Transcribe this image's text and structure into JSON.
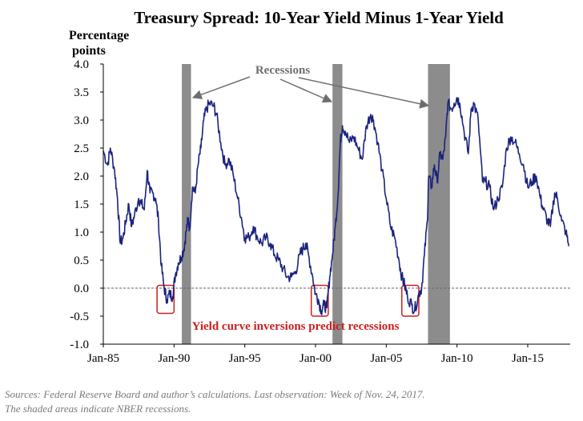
{
  "chart_data": {
    "type": "line",
    "title": "Treasury Spread: 10-Year Yield Minus 1-Year Yield",
    "ylabel_line1": "Percentage",
    "ylabel_line2": "points",
    "xlabel": "",
    "ylim": [
      -1.0,
      4.0
    ],
    "xlim": [
      1985.0,
      2018.0
    ],
    "y_ticks": [
      {
        "value": 4.0,
        "label": "4.0"
      },
      {
        "value": 3.5,
        "label": "3.5"
      },
      {
        "value": 3.0,
        "label": "3.0"
      },
      {
        "value": 2.5,
        "label": "2.5"
      },
      {
        "value": 2.0,
        "label": "2.0"
      },
      {
        "value": 1.5,
        "label": "1.5"
      },
      {
        "value": 1.0,
        "label": "1.0"
      },
      {
        "value": 0.5,
        "label": "0.5"
      },
      {
        "value": 0.0,
        "label": "0.0"
      },
      {
        "value": -0.5,
        "label": "-0.5"
      },
      {
        "value": -1.0,
        "label": "-1.0"
      }
    ],
    "x_ticks": [
      {
        "value": 1985.0,
        "label": "Jan-85"
      },
      {
        "value": 1990.0,
        "label": "Jan-90"
      },
      {
        "value": 1995.0,
        "label": "Jan-95"
      },
      {
        "value": 2000.0,
        "label": "Jan-00"
      },
      {
        "value": 2005.0,
        "label": "Jan-05"
      },
      {
        "value": 2010.0,
        "label": "Jan-10"
      },
      {
        "value": 2015.0,
        "label": "Jan-15"
      }
    ],
    "zero_line": 0.0,
    "recessions": [
      {
        "start": 1990.55,
        "end": 1991.2
      },
      {
        "start": 2001.2,
        "end": 2001.9
      },
      {
        "start": 2007.95,
        "end": 2009.5
      }
    ],
    "recession_label": "Recessions",
    "inversion_boxes": [
      {
        "start": 1988.8,
        "end": 1990.0,
        "ymin": -0.45,
        "ymax": 0.05
      },
      {
        "start": 1999.7,
        "end": 2000.9,
        "ymin": -0.5,
        "ymax": 0.05
      },
      {
        "start": 2006.1,
        "end": 2007.3,
        "ymin": -0.5,
        "ymax": 0.05
      }
    ],
    "inversion_label": "Yield curve inversions predict recessions",
    "series": [
      {
        "name": "10-Year minus 1-Year Treasury spread",
        "color": "#1a237e",
        "points": [
          [
            1985.0,
            2.45
          ],
          [
            1985.3,
            2.2
          ],
          [
            1985.5,
            2.5
          ],
          [
            1985.8,
            2.1
          ],
          [
            1986.0,
            1.6
          ],
          [
            1986.2,
            0.8
          ],
          [
            1986.4,
            0.9
          ],
          [
            1986.6,
            1.2
          ],
          [
            1986.8,
            1.5
          ],
          [
            1987.0,
            1.1
          ],
          [
            1987.2,
            1.3
          ],
          [
            1987.5,
            1.6
          ],
          [
            1987.7,
            1.5
          ],
          [
            1987.9,
            1.4
          ],
          [
            1988.1,
            2.1
          ],
          [
            1988.3,
            1.7
          ],
          [
            1988.5,
            1.7
          ],
          [
            1988.7,
            1.6
          ],
          [
            1988.9,
            1.2
          ],
          [
            1989.1,
            0.4
          ],
          [
            1989.3,
            0.0
          ],
          [
            1989.5,
            -0.2
          ],
          [
            1989.7,
            -0.1
          ],
          [
            1989.9,
            -0.15
          ],
          [
            1990.1,
            0.25
          ],
          [
            1990.3,
            0.45
          ],
          [
            1990.5,
            0.55
          ],
          [
            1990.7,
            0.7
          ],
          [
            1990.85,
            1.0
          ],
          [
            1991.0,
            1.25
          ],
          [
            1991.1,
            1.05
          ],
          [
            1991.3,
            1.8
          ],
          [
            1991.5,
            1.7
          ],
          [
            1991.7,
            2.2
          ],
          [
            1991.9,
            2.5
          ],
          [
            1992.1,
            3.0
          ],
          [
            1992.3,
            3.2
          ],
          [
            1992.5,
            3.3
          ],
          [
            1992.8,
            3.25
          ],
          [
            1993.0,
            3.1
          ],
          [
            1993.3,
            2.6
          ],
          [
            1993.6,
            2.2
          ],
          [
            1993.9,
            2.3
          ],
          [
            1994.2,
            2.0
          ],
          [
            1994.5,
            1.6
          ],
          [
            1994.8,
            1.2
          ],
          [
            1995.0,
            0.9
          ],
          [
            1995.3,
            0.9
          ],
          [
            1995.6,
            1.1
          ],
          [
            1995.9,
            0.9
          ],
          [
            1996.2,
            0.8
          ],
          [
            1996.5,
            0.9
          ],
          [
            1996.8,
            0.8
          ],
          [
            1997.1,
            0.6
          ],
          [
            1997.4,
            0.5
          ],
          [
            1997.7,
            0.35
          ],
          [
            1998.0,
            0.2
          ],
          [
            1998.3,
            0.2
          ],
          [
            1998.6,
            0.3
          ],
          [
            1998.9,
            0.6
          ],
          [
            1999.1,
            0.7
          ],
          [
            1999.3,
            0.8
          ],
          [
            1999.5,
            0.6
          ],
          [
            1999.8,
            0.2
          ],
          [
            2000.0,
            -0.1
          ],
          [
            2000.2,
            -0.2
          ],
          [
            2000.4,
            -0.4
          ],
          [
            2000.6,
            -0.3
          ],
          [
            2000.8,
            -0.35
          ],
          [
            2001.0,
            0.2
          ],
          [
            2001.2,
            0.6
          ],
          [
            2001.4,
            1.1
          ],
          [
            2001.6,
            1.7
          ],
          [
            2001.75,
            2.6
          ],
          [
            2001.9,
            2.9
          ],
          [
            2002.1,
            2.8
          ],
          [
            2002.4,
            2.6
          ],
          [
            2002.7,
            2.7
          ],
          [
            2003.0,
            2.5
          ],
          [
            2003.3,
            2.3
          ],
          [
            2003.6,
            2.9
          ],
          [
            2003.9,
            3.1
          ],
          [
            2004.1,
            3.0
          ],
          [
            2004.4,
            2.6
          ],
          [
            2004.7,
            2.1
          ],
          [
            2005.0,
            1.6
          ],
          [
            2005.3,
            1.1
          ],
          [
            2005.6,
            0.9
          ],
          [
            2005.9,
            0.5
          ],
          [
            2006.1,
            0.2
          ],
          [
            2006.3,
            0.05
          ],
          [
            2006.5,
            -0.15
          ],
          [
            2006.8,
            -0.3
          ],
          [
            2007.0,
            -0.4
          ],
          [
            2007.3,
            -0.1
          ],
          [
            2007.5,
            0.0
          ],
          [
            2007.7,
            0.6
          ],
          [
            2007.9,
            1.2
          ],
          [
            2008.0,
            2.0
          ],
          [
            2008.2,
            1.8
          ],
          [
            2008.4,
            2.2
          ],
          [
            2008.6,
            1.9
          ],
          [
            2008.8,
            2.4
          ],
          [
            2009.0,
            2.3
          ],
          [
            2009.2,
            2.7
          ],
          [
            2009.35,
            3.3
          ],
          [
            2009.6,
            3.2
          ],
          [
            2009.8,
            3.3
          ],
          [
            2010.0,
            3.4
          ],
          [
            2010.2,
            3.3
          ],
          [
            2010.5,
            2.8
          ],
          [
            2010.8,
            2.4
          ],
          [
            2011.0,
            3.2
          ],
          [
            2011.2,
            3.3
          ],
          [
            2011.5,
            3.0
          ],
          [
            2011.8,
            1.9
          ],
          [
            2012.0,
            1.9
          ],
          [
            2012.3,
            1.8
          ],
          [
            2012.6,
            1.4
          ],
          [
            2012.9,
            1.6
          ],
          [
            2013.2,
            1.8
          ],
          [
            2013.5,
            2.5
          ],
          [
            2013.8,
            2.7
          ],
          [
            2014.1,
            2.6
          ],
          [
            2014.4,
            2.4
          ],
          [
            2014.7,
            2.2
          ],
          [
            2015.0,
            1.8
          ],
          [
            2015.3,
            1.9
          ],
          [
            2015.6,
            2.0
          ],
          [
            2015.9,
            1.6
          ],
          [
            2016.1,
            1.4
          ],
          [
            2016.4,
            1.2
          ],
          [
            2016.6,
            1.1
          ],
          [
            2016.9,
            1.7
          ],
          [
            2017.1,
            1.6
          ],
          [
            2017.4,
            1.2
          ],
          [
            2017.7,
            1.0
          ],
          [
            2017.9,
            0.75
          ]
        ]
      }
    ]
  },
  "source_caption": "Sources: Federal Reserve Board and author’s calculations. Last observation: Week of Nov. 24, 2017.",
  "note_caption": "The shaded areas indicate NBER recessions.",
  "colors": {
    "line": "#1a237e",
    "recession_band": "#8c8c8c",
    "inversion_box": "#cc1f1f",
    "inversion_text": "#cc1f1f",
    "recession_text": "#6e6e6e",
    "arrow": "#6e6e6e",
    "axis": "#000000",
    "zero_line": "#666666"
  }
}
